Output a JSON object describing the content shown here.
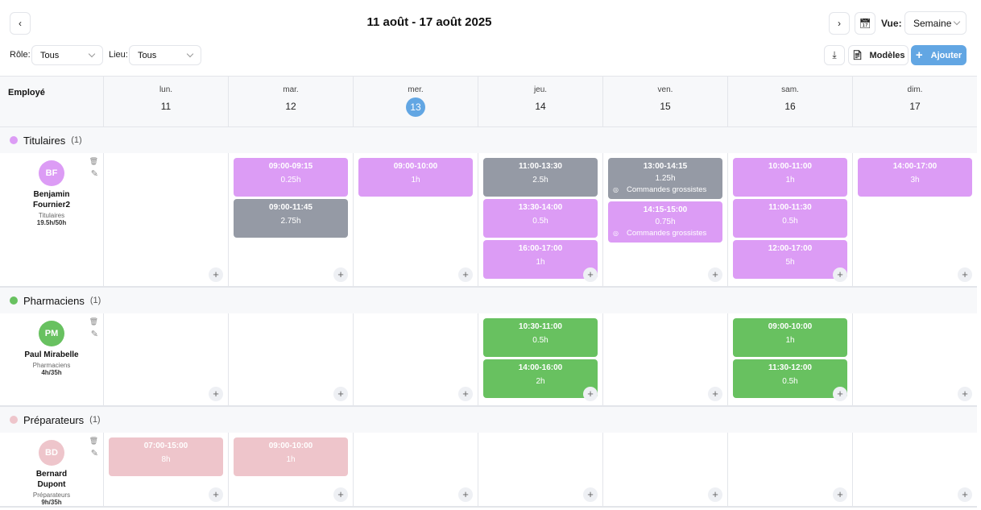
{
  "header": {
    "title": "11 août - 17 août 2025",
    "prev_icon": "chevron-left-icon",
    "next_icon": "chevron-right-icon",
    "calendar_icon": "calendar-icon",
    "view_label": "Vue:",
    "view_value": "Semaine"
  },
  "filters": {
    "role_label": "Rôle:",
    "role_value": "Tous",
    "place_label": "Lieu:",
    "place_value": "Tous"
  },
  "toolbar": {
    "download_icon": "download-icon",
    "models_label": "Modèles",
    "add_label": "Ajouter",
    "accent": "#62a6e3"
  },
  "table": {
    "employee_header": "Employé",
    "days": [
      {
        "name": "lun.",
        "num": "11"
      },
      {
        "name": "mar.",
        "num": "12"
      },
      {
        "name": "mer.",
        "num": "13",
        "today": true
      },
      {
        "name": "jeu.",
        "num": "14"
      },
      {
        "name": "ven.",
        "num": "15"
      },
      {
        "name": "sam.",
        "num": "16"
      },
      {
        "name": "dim.",
        "num": "17"
      }
    ]
  },
  "colors": {
    "purple": "#dc9cf5",
    "gray": "#959aa5",
    "green": "#68c160",
    "pink": "#eec5cb"
  },
  "groups": [
    {
      "name": "Titulaires",
      "count": "(1)",
      "color": "#dc9cf5",
      "employees": [
        {
          "initials": "BF",
          "name": "Benjamin Fournier2",
          "role": "Titulaires",
          "hours": "19.5h/50h",
          "days": [
            [],
            [
              {
                "time": "09:00-09:15",
                "dur": "0.25h",
                "c": "purple"
              },
              {
                "time": "09:00-11:45",
                "dur": "2.75h",
                "c": "gray"
              }
            ],
            [
              {
                "time": "09:00-10:00",
                "dur": "1h",
                "c": "purple"
              }
            ],
            [
              {
                "time": "11:00-13:30",
                "dur": "2.5h",
                "c": "gray"
              },
              {
                "time": "13:30-14:00",
                "dur": "0.5h",
                "c": "purple"
              },
              {
                "time": "16:00-17:00",
                "dur": "1h",
                "c": "purple"
              }
            ],
            [
              {
                "time": "13:00-14:15",
                "dur": "1.25h",
                "c": "gray",
                "loc": "Commandes grossistes"
              },
              {
                "time": "14:15-15:00",
                "dur": "0.75h",
                "c": "purple",
                "loc": "Commandes grossistes"
              }
            ],
            [
              {
                "time": "10:00-11:00",
                "dur": "1h",
                "c": "purple"
              },
              {
                "time": "11:00-11:30",
                "dur": "0.5h",
                "c": "purple"
              },
              {
                "time": "12:00-17:00",
                "dur": "5h",
                "c": "purple"
              }
            ],
            [
              {
                "time": "14:00-17:00",
                "dur": "3h",
                "c": "purple"
              }
            ]
          ]
        }
      ]
    },
    {
      "name": "Pharmaciens",
      "count": "(1)",
      "color": "#68c160",
      "employees": [
        {
          "initials": "PM",
          "name": "Paul Mirabelle",
          "role": "Pharmaciens",
          "hours": "4h/35h",
          "days": [
            [],
            [],
            [],
            [
              {
                "time": "10:30-11:00",
                "dur": "0.5h",
                "c": "green"
              },
              {
                "time": "14:00-16:00",
                "dur": "2h",
                "c": "green"
              }
            ],
            [],
            [
              {
                "time": "09:00-10:00",
                "dur": "1h",
                "c": "green"
              },
              {
                "time": "11:30-12:00",
                "dur": "0.5h",
                "c": "green"
              }
            ],
            []
          ]
        }
      ]
    },
    {
      "name": "Préparateurs",
      "count": "(1)",
      "color": "#eec5cb",
      "employees": [
        {
          "initials": "BD",
          "name": "Bernard Dupont",
          "role": "Préparateurs",
          "hours": "9h/35h",
          "days": [
            [
              {
                "time": "07:00-15:00",
                "dur": "8h",
                "c": "pink"
              }
            ],
            [
              {
                "time": "09:00-10:00",
                "dur": "1h",
                "c": "pink"
              }
            ],
            [],
            [],
            [],
            [],
            []
          ]
        }
      ]
    }
  ]
}
